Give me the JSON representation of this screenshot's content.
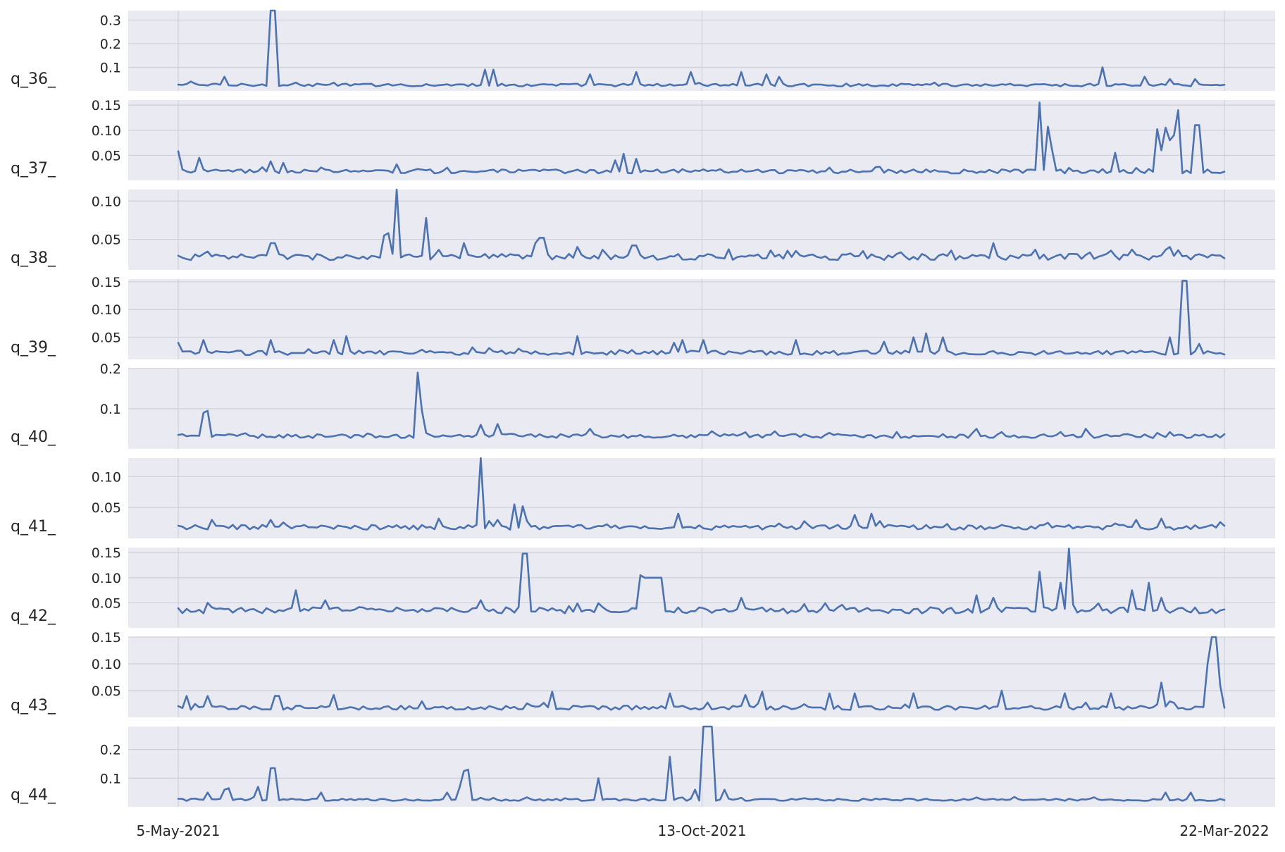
{
  "chart_data": {
    "type": "line",
    "x_range": [
      "5-May-2021",
      "22-Mar-2022"
    ],
    "x_ticks": [
      "5-May-2021",
      "13-Oct-2021",
      "22-Mar-2022"
    ],
    "grid": true,
    "line_color": "#4c72b0",
    "background_color": "#eaeaf2",
    "grid_color": "#cfcfd8",
    "panels": [
      {
        "label": "q_36_",
        "ylim": [
          0.0,
          0.34
        ],
        "yticks": [
          0.1,
          0.2,
          0.3
        ],
        "ytick_labels": [
          "0.1",
          "0.2",
          "0.3"
        ],
        "series": {
          "name": "",
          "base": 0.025,
          "noise": 0.006,
          "spikes": [
            [
              3,
              0.04
            ],
            [
              11,
              0.06
            ],
            [
              22,
              0.34
            ],
            [
              23,
              0.34
            ],
            [
              46,
              0.03
            ],
            [
              70,
              0.03
            ],
            [
              73,
              0.09
            ],
            [
              75,
              0.09
            ],
            [
              98,
              0.07
            ],
            [
              109,
              0.08
            ],
            [
              122,
              0.08
            ],
            [
              134,
              0.08
            ],
            [
              140,
              0.07
            ],
            [
              143,
              0.06
            ],
            [
              198,
              0.03
            ],
            [
              220,
              0.1
            ],
            [
              230,
              0.06
            ],
            [
              236,
              0.05
            ],
            [
              242,
              0.05
            ]
          ]
        }
      },
      {
        "label": "q_37_",
        "ylim": [
          0.0,
          0.16
        ],
        "yticks": [
          0.05,
          0.1,
          0.15
        ],
        "ytick_labels": [
          "0.05",
          "0.10",
          "0.15"
        ],
        "series": {
          "name": "",
          "base": 0.018,
          "noise": 0.004,
          "spikes": [
            [
              0,
              0.058
            ],
            [
              5,
              0.045
            ],
            [
              22,
              0.038
            ],
            [
              25,
              0.035
            ],
            [
              52,
              0.032
            ],
            [
              104,
              0.04
            ],
            [
              106,
              0.053
            ],
            [
              109,
              0.043
            ],
            [
              123,
              0.02
            ],
            [
              125,
              0.022
            ],
            [
              205,
              0.155
            ],
            [
              207,
              0.107
            ],
            [
              208,
              0.06
            ],
            [
              212,
              0.025
            ],
            [
              223,
              0.055
            ],
            [
              228,
              0.025
            ],
            [
              233,
              0.102
            ],
            [
              234,
              0.06
            ],
            [
              235,
              0.105
            ],
            [
              236,
              0.08
            ],
            [
              237,
              0.09
            ],
            [
              238,
              0.14
            ],
            [
              240,
              0.02
            ],
            [
              242,
              0.11
            ],
            [
              243,
              0.11
            ],
            [
              252,
              0.032
            ]
          ]
        }
      },
      {
        "label": "q_38_",
        "ylim": [
          0.01,
          0.115
        ],
        "yticks": [
          0.05,
          0.1
        ],
        "ytick_labels": [
          "0.05",
          "0.10"
        ],
        "series": {
          "name": "",
          "base": 0.027,
          "noise": 0.004,
          "spikes": [
            [
              22,
              0.045
            ],
            [
              23,
              0.045
            ],
            [
              49,
              0.055
            ],
            [
              50,
              0.058
            ],
            [
              52,
              0.115
            ],
            [
              59,
              0.078
            ],
            [
              68,
              0.045
            ],
            [
              85,
              0.045
            ],
            [
              86,
              0.052
            ],
            [
              87,
              0.052
            ],
            [
              95,
              0.04
            ],
            [
              108,
              0.042
            ],
            [
              109,
              0.042
            ],
            [
              145,
              0.035
            ],
            [
              194,
              0.045
            ],
            [
              236,
              0.04
            ]
          ]
        }
      },
      {
        "label": "q_39_",
        "ylim": [
          0.01,
          0.155
        ],
        "yticks": [
          0.05,
          0.1,
          0.15
        ],
        "ytick_labels": [
          "0.05",
          "0.10",
          "0.15"
        ],
        "series": {
          "name": "",
          "base": 0.022,
          "noise": 0.004,
          "spikes": [
            [
              0,
              0.04
            ],
            [
              6,
              0.045
            ],
            [
              22,
              0.045
            ],
            [
              37,
              0.045
            ],
            [
              40,
              0.052
            ],
            [
              95,
              0.052
            ],
            [
              118,
              0.04
            ],
            [
              120,
              0.045
            ],
            [
              125,
              0.045
            ],
            [
              147,
              0.045
            ],
            [
              168,
              0.042
            ],
            [
              175,
              0.05
            ],
            [
              178,
              0.057
            ],
            [
              182,
              0.05
            ],
            [
              236,
              0.05
            ],
            [
              239,
              0.152
            ],
            [
              240,
              0.152
            ],
            [
              243,
              0.038
            ]
          ]
        }
      },
      {
        "label": "q_40_",
        "ylim": [
          0.0,
          0.2
        ],
        "yticks": [
          0.1,
          0.2
        ],
        "ytick_labels": [
          "0.1",
          "0.2"
        ],
        "series": {
          "name": "",
          "base": 0.032,
          "noise": 0.005,
          "spikes": [
            [
              6,
              0.09
            ],
            [
              7,
              0.095
            ],
            [
              57,
              0.19
            ],
            [
              58,
              0.095
            ],
            [
              72,
              0.06
            ],
            [
              76,
              0.062
            ],
            [
              98,
              0.05
            ],
            [
              155,
              0.04
            ],
            [
              190,
              0.05
            ],
            [
              216,
              0.05
            ],
            [
              236,
              0.042
            ]
          ]
        }
      },
      {
        "label": "q_41_",
        "ylim": [
          0.0,
          0.13
        ],
        "yticks": [
          0.05,
          0.1
        ],
        "ytick_labels": [
          "0.05",
          "0.10"
        ],
        "series": {
          "name": "",
          "base": 0.018,
          "noise": 0.004,
          "spikes": [
            [
              8,
              0.03
            ],
            [
              22,
              0.03
            ],
            [
              62,
              0.032
            ],
            [
              72,
              0.13
            ],
            [
              74,
              0.028
            ],
            [
              76,
              0.03
            ],
            [
              80,
              0.055
            ],
            [
              82,
              0.052
            ],
            [
              83,
              0.028
            ],
            [
              119,
              0.04
            ],
            [
              161,
              0.038
            ],
            [
              165,
              0.04
            ],
            [
              228,
              0.03
            ],
            [
              234,
              0.032
            ]
          ]
        }
      },
      {
        "label": "q_42_",
        "ylim": [
          0.0,
          0.16
        ],
        "yticks": [
          0.05,
          0.1,
          0.15
        ],
        "ytick_labels": [
          "0.05",
          "0.10",
          "0.15"
        ],
        "series": {
          "name": "",
          "base": 0.035,
          "noise": 0.006,
          "spikes": [
            [
              7,
              0.05
            ],
            [
              28,
              0.075
            ],
            [
              35,
              0.055
            ],
            [
              72,
              0.055
            ],
            [
              82,
              0.148
            ],
            [
              83,
              0.148
            ],
            [
              110,
              0.105
            ],
            [
              111,
              0.1
            ],
            [
              112,
              0.1
            ],
            [
              113,
              0.1
            ],
            [
              114,
              0.1
            ],
            [
              115,
              0.1
            ],
            [
              134,
              0.06
            ],
            [
              190,
              0.065
            ],
            [
              194,
              0.06
            ],
            [
              205,
              0.112
            ],
            [
              210,
              0.09
            ],
            [
              212,
              0.158
            ],
            [
              227,
              0.075
            ],
            [
              231,
              0.09
            ],
            [
              234,
              0.06
            ]
          ]
        }
      },
      {
        "label": "q_43_",
        "ylim": [
          0.0,
          0.15
        ],
        "yticks": [
          0.05,
          0.1,
          0.15
        ],
        "ytick_labels": [
          "0.05",
          "0.10",
          "0.15"
        ],
        "series": {
          "name": "",
          "base": 0.018,
          "noise": 0.004,
          "spikes": [
            [
              2,
              0.04
            ],
            [
              7,
              0.04
            ],
            [
              23,
              0.04
            ],
            [
              24,
              0.04
            ],
            [
              37,
              0.042
            ],
            [
              58,
              0.03
            ],
            [
              89,
              0.048
            ],
            [
              117,
              0.045
            ],
            [
              135,
              0.042
            ],
            [
              139,
              0.048
            ],
            [
              155,
              0.045
            ],
            [
              161,
              0.045
            ],
            [
              175,
              0.045
            ],
            [
              196,
              0.05
            ],
            [
              211,
              0.045
            ],
            [
              222,
              0.045
            ],
            [
              234,
              0.065
            ],
            [
              236,
              0.03
            ],
            [
              245,
              0.1
            ],
            [
              246,
              0.15
            ],
            [
              247,
              0.15
            ],
            [
              248,
              0.06
            ]
          ]
        }
      },
      {
        "label": "q_44_",
        "ylim": [
          0.0,
          0.28
        ],
        "yticks": [
          0.1,
          0.2
        ],
        "ytick_labels": [
          "0.1",
          "0.2"
        ],
        "series": {
          "name": "",
          "base": 0.025,
          "noise": 0.004,
          "spikes": [
            [
              7,
              0.05
            ],
            [
              11,
              0.06
            ],
            [
              12,
              0.065
            ],
            [
              19,
              0.07
            ],
            [
              22,
              0.135
            ],
            [
              23,
              0.135
            ],
            [
              34,
              0.05
            ],
            [
              64,
              0.05
            ],
            [
              67,
              0.07
            ],
            [
              68,
              0.125
            ],
            [
              69,
              0.13
            ],
            [
              100,
              0.1
            ],
            [
              117,
              0.175
            ],
            [
              123,
              0.06
            ],
            [
              125,
              0.28
            ],
            [
              126,
              0.28
            ],
            [
              127,
              0.28
            ],
            [
              130,
              0.06
            ],
            [
              235,
              0.05
            ],
            [
              241,
              0.05
            ]
          ]
        }
      }
    ]
  }
}
